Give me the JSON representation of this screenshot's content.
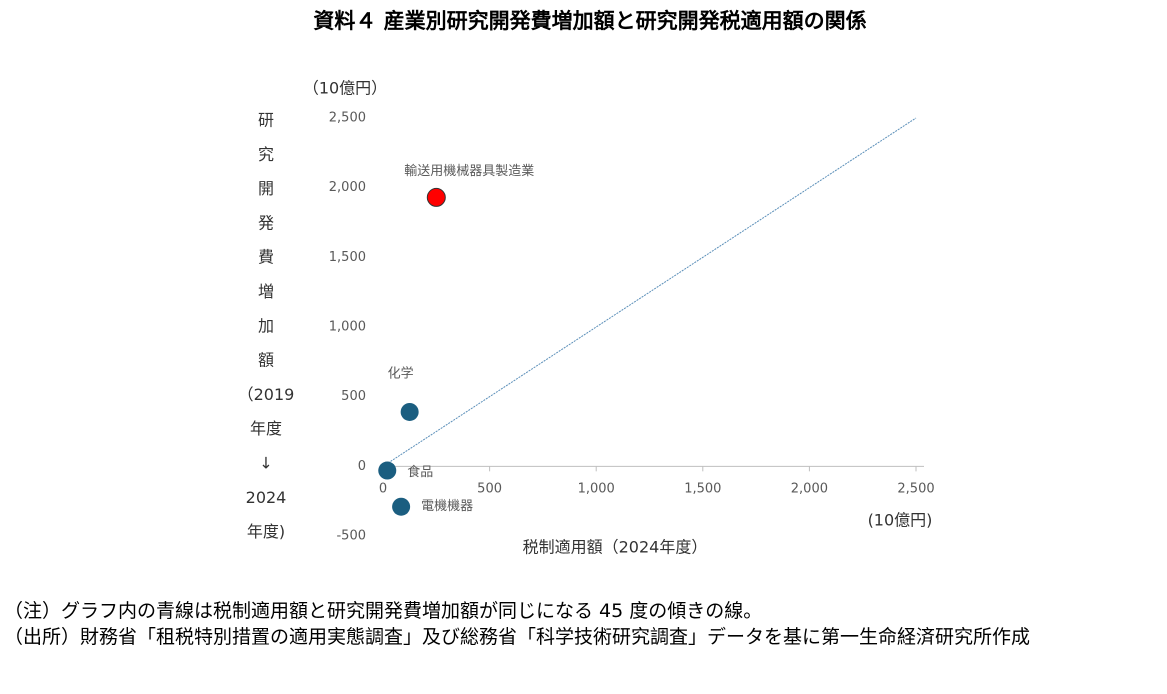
{
  "chart_data": {
    "type": "scatter",
    "title": "資料４ 産業別研究開発費増加額と研究開発税適用額の関係",
    "y_unit": "（10億円）",
    "x_unit": "(10億円)",
    "x_label": "税制適用額（2024年度）",
    "y_label": [
      "研",
      "究",
      "開",
      "発",
      "費",
      "増",
      "加",
      "額",
      "（2019",
      "年度",
      "↓",
      "2024",
      "年度)"
    ],
    "points": [
      {
        "label": "輸送用機械器具製造業",
        "x": 250,
        "y": 1930,
        "color": "#ff0000"
      },
      {
        "label": "化学",
        "x": 125,
        "y": 390,
        "color": "#1b5e80"
      },
      {
        "label": "食品",
        "x": 20,
        "y": -30,
        "color": "#1b5e80"
      },
      {
        "label": "電機機器",
        "x": 85,
        "y": -290,
        "color": "#1b5e80"
      }
    ],
    "reference_line": {
      "x": [
        0,
        2500
      ],
      "y": [
        0,
        2500
      ],
      "color": "#5b8fb9"
    },
    "xlim": [
      0,
      2500
    ],
    "ylim": [
      -500,
      2500
    ],
    "xticks": [
      0,
      500,
      {
        "value": 1000,
        "label": "1,000"
      },
      {
        "value": 1500,
        "label": "1,500"
      },
      {
        "value": 2000,
        "label": "2,000"
      },
      {
        "value": 2500,
        "label": "2,500"
      }
    ],
    "yticks": [
      -500,
      0,
      500,
      {
        "value": 1000,
        "label": "1,000"
      },
      {
        "value": 1500,
        "label": "1,500"
      },
      {
        "value": 2000,
        "label": "2,000"
      },
      {
        "value": 2500,
        "label": "2,500"
      }
    ],
    "grid": false
  },
  "notes": [
    "（注）グラフ内の青線は税制適用額と研究開発費増加額が同じになる 45 度の傾きの線。",
    "（出所）財務省「租税特別措置の適用実態調査」及び総務省「科学技術研究調査」データを基に第一生命経済研究所作成"
  ]
}
